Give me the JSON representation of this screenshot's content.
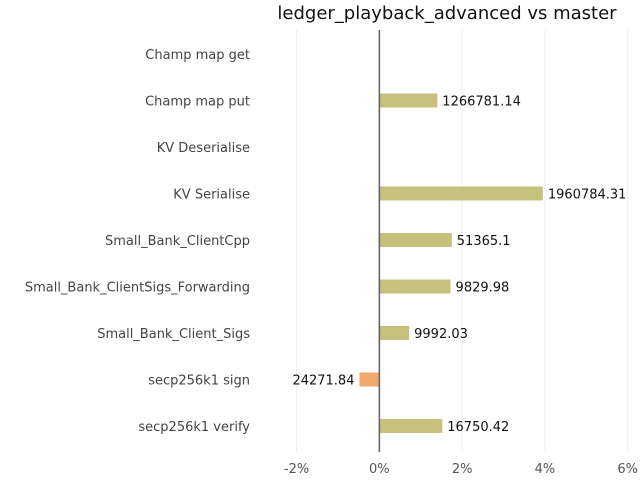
{
  "chart_data": {
    "type": "bar",
    "orientation": "horizontal",
    "title": "ledger_playback_advanced vs master",
    "xlabel": "",
    "ylabel": "",
    "xlim": [
      -2.4,
      6.2
    ],
    "xticks": [
      -2,
      0,
      2,
      4,
      6
    ],
    "xtick_labels": [
      "-2%",
      "0%",
      "2%",
      "4%",
      "6%"
    ],
    "grid": "vertical",
    "legend": "none",
    "categories": [
      "Champ map get",
      "Champ map put",
      "KV Deserialise",
      "KV Serialise",
      "Small_Bank_ClientCpp",
      "Small_Bank_ClientSigs_Forwarding",
      "Small_Bank_Client_Sigs",
      "secp256k1 sign",
      "secp256k1 verify"
    ],
    "values": [
      0,
      1.4,
      0,
      3.95,
      1.75,
      1.72,
      0.72,
      -0.48,
      1.52
    ],
    "data_labels": [
      "",
      "1266781.14",
      "",
      "1960784.31",
      "51365.1",
      "9829.98",
      "9992.03",
      "24271.84",
      "16750.42"
    ],
    "colors": {
      "positive": "#c5c07b",
      "negative": "#f0a96b",
      "zero_line": "#666666",
      "grid": "#eeeeee"
    }
  }
}
